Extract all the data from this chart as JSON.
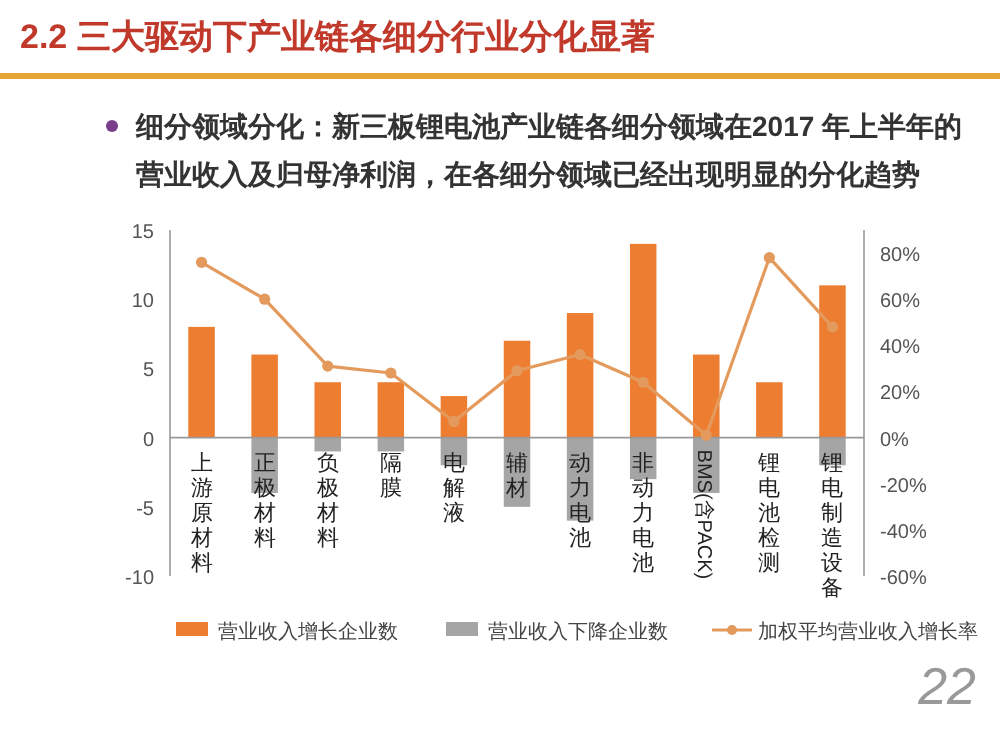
{
  "chart_data": {
    "type": "bar",
    "title": "2.2 三大驱动下产业链各细分行业分化显著",
    "subtitle": "细分领域分化：新三板锂电池产业链各细分领域在2017 年上半年的营业收入及归母净利润，在各细分领域已经出现明显的分化趋势",
    "categories": [
      "上游原材料",
      "正极材料",
      "负极材料",
      "隔膜",
      "电解液",
      "辅材",
      "动力电池",
      "非动力电池",
      "BMS(含PACK)",
      "锂电池检测",
      "锂电制造设备"
    ],
    "series": [
      {
        "name": "营业收入增长企业数",
        "color": "#ed7d31",
        "values": [
          8,
          6,
          4,
          4,
          3,
          7,
          9,
          14,
          6,
          4,
          11
        ]
      },
      {
        "name": "营业收入下降企业数",
        "color": "#a5a5a5",
        "values": [
          0,
          -4,
          -1,
          -1,
          -2,
          -5,
          -6,
          -3,
          -4,
          0,
          -2
        ]
      },
      {
        "name": "加权平均营业收入增长率",
        "type": "line",
        "axis": "y2",
        "color": "#e39a5c",
        "marker": "circle",
        "values": [
          76,
          60,
          31,
          28,
          7,
          29,
          36,
          24,
          1,
          78,
          48
        ]
      }
    ],
    "stacked": true,
    "ylim": [
      -10,
      15
    ],
    "yticks": [
      -10,
      -5,
      0,
      5,
      10,
      15
    ],
    "y2lim": [
      -60,
      90
    ],
    "y2ticks": [
      {
        "value": -60,
        "label": "-60%"
      },
      {
        "value": -40,
        "label": "-40%"
      },
      {
        "value": -20,
        "label": "-20%"
      },
      {
        "value": 0,
        "label": "0%"
      },
      {
        "value": 20,
        "label": "20%"
      },
      {
        "value": 40,
        "label": "40%"
      },
      {
        "value": 60,
        "label": "60%"
      },
      {
        "value": 80,
        "label": "80%"
      }
    ],
    "legend": "bottom",
    "annotations": [
      "22"
    ]
  }
}
